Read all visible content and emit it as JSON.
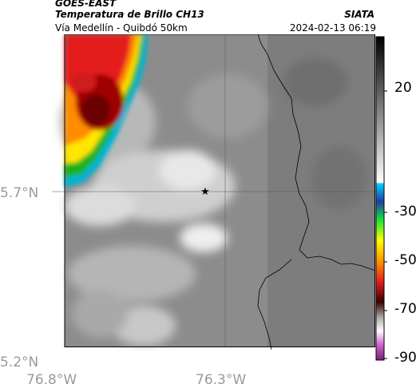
{
  "header": {
    "satellite": "GOES-EAST",
    "product": "Temperatura de Brillo CH13",
    "organization": "SIATA",
    "route": "Vía Medellín - Quibdó 50km",
    "datetime": "2024-02-13 06:19"
  },
  "map": {
    "lat_labels": [
      "5.7°N",
      "5.2°N"
    ],
    "lon_labels": [
      "76.8°W",
      "76.3°W"
    ],
    "marker": "star-marker",
    "colors": {
      "cold_red": "#e41a1c",
      "dark_red": "#6b0000",
      "orange": "#ff8c00",
      "yellow": "#ffe600",
      "green": "#1fb21f",
      "cyan": "#00b4d8",
      "blue": "#1f3da6"
    }
  },
  "colorbar": {
    "ticks": [
      "20",
      "-30",
      "-50",
      "-70",
      "-90"
    ]
  }
}
